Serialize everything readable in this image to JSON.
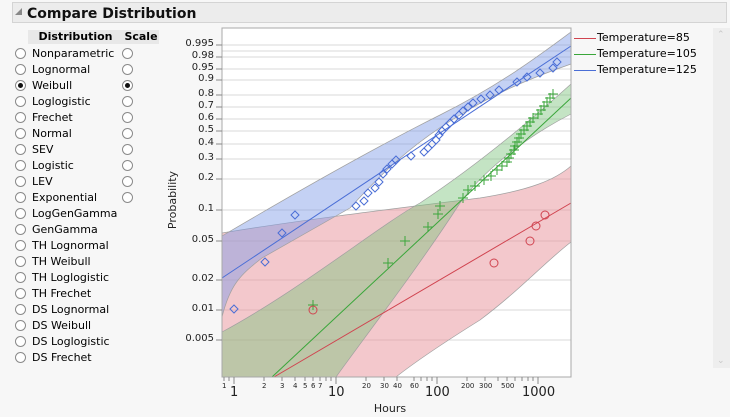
{
  "header": {
    "title": "Compare Distribution"
  },
  "table": {
    "col_distribution": "Distribution",
    "col_scale": "Scale",
    "rows": [
      {
        "label": "Nonparametric",
        "dist_selected": false,
        "has_scale": true,
        "scale_selected": false
      },
      {
        "label": "Lognormal",
        "dist_selected": false,
        "has_scale": true,
        "scale_selected": false
      },
      {
        "label": "Weibull",
        "dist_selected": true,
        "has_scale": true,
        "scale_selected": true
      },
      {
        "label": "Loglogistic",
        "dist_selected": false,
        "has_scale": true,
        "scale_selected": false
      },
      {
        "label": "Frechet",
        "dist_selected": false,
        "has_scale": true,
        "scale_selected": false
      },
      {
        "label": "Normal",
        "dist_selected": false,
        "has_scale": true,
        "scale_selected": false
      },
      {
        "label": "SEV",
        "dist_selected": false,
        "has_scale": true,
        "scale_selected": false
      },
      {
        "label": "Logistic",
        "dist_selected": false,
        "has_scale": true,
        "scale_selected": false
      },
      {
        "label": "LEV",
        "dist_selected": false,
        "has_scale": true,
        "scale_selected": false
      },
      {
        "label": "Exponential",
        "dist_selected": false,
        "has_scale": true,
        "scale_selected": false
      },
      {
        "label": "LogGenGamma",
        "dist_selected": false,
        "has_scale": false,
        "scale_selected": false
      },
      {
        "label": "GenGamma",
        "dist_selected": false,
        "has_scale": false,
        "scale_selected": false
      },
      {
        "label": "TH Lognormal",
        "dist_selected": false,
        "has_scale": false,
        "scale_selected": false
      },
      {
        "label": "TH Weibull",
        "dist_selected": false,
        "has_scale": false,
        "scale_selected": false
      },
      {
        "label": "TH Loglogistic",
        "dist_selected": false,
        "has_scale": false,
        "scale_selected": false
      },
      {
        "label": "TH Frechet",
        "dist_selected": false,
        "has_scale": false,
        "scale_selected": false
      },
      {
        "label": "DS Lognormal",
        "dist_selected": false,
        "has_scale": false,
        "scale_selected": false
      },
      {
        "label": "DS Weibull",
        "dist_selected": false,
        "has_scale": false,
        "scale_selected": false
      },
      {
        "label": "DS Loglogistic",
        "dist_selected": false,
        "has_scale": false,
        "scale_selected": false
      },
      {
        "label": "DS Frechet",
        "dist_selected": false,
        "has_scale": false,
        "scale_selected": false
      }
    ]
  },
  "plot": {
    "ylabel": "Probability",
    "xlabel": "Hours",
    "y_ticks": [
      "0.995",
      "0.98",
      "0.95",
      "0.9",
      "0.8",
      "0.7",
      "0.6",
      "0.5",
      "0.4",
      "0.3",
      "0.2",
      "0.1",
      "0.05",
      "0.02",
      "0.01",
      "0.005"
    ],
    "x_major_ticks": [
      "1",
      "10",
      "100",
      "1000"
    ],
    "x_minor_ticks": [
      "1",
      "2",
      "3",
      "4",
      "5",
      "6",
      "7",
      "20",
      "30",
      "40",
      "60",
      "200",
      "300",
      "500"
    ],
    "legend": [
      {
        "label": "Temperature=85",
        "color": "#d0434f"
      },
      {
        "label": "Temperature=105",
        "color": "#3aa63a"
      },
      {
        "label": "Temperature=125",
        "color": "#4a6ed6"
      }
    ]
  },
  "colors": {
    "red": "#d0434f",
    "green": "#3aa63a",
    "blue": "#4a6ed6"
  }
}
